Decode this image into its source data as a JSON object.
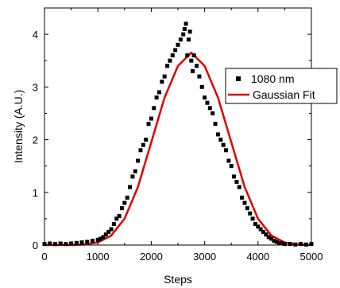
{
  "chart_data": {
    "type": "scatter",
    "title": "",
    "xlabel": "Steps",
    "ylabel": "Intensity (A.U.)",
    "xlim": [
      0,
      5000
    ],
    "ylim": [
      0,
      4.5
    ],
    "xticks": [
      0,
      1000,
      2000,
      3000,
      4000,
      5000
    ],
    "yticks": [
      0,
      1,
      2,
      3,
      4
    ],
    "legend_position": "right",
    "grid": false,
    "series": [
      {
        "name": "1080 nm",
        "kind": "scatter",
        "marker": "square",
        "color": "#000000",
        "x": [
          0,
          100,
          200,
          300,
          400,
          500,
          600,
          700,
          800,
          900,
          1000,
          1050,
          1100,
          1150,
          1200,
          1250,
          1300,
          1350,
          1400,
          1450,
          1500,
          1550,
          1600,
          1650,
          1700,
          1750,
          1800,
          1850,
          1900,
          1950,
          2000,
          2050,
          2100,
          2150,
          2200,
          2250,
          2300,
          2350,
          2400,
          2450,
          2500,
          2550,
          2600,
          2625,
          2650,
          2675,
          2700,
          2725,
          2750,
          2775,
          2800,
          2850,
          2900,
          2950,
          3000,
          3050,
          3100,
          3150,
          3200,
          3250,
          3300,
          3350,
          3400,
          3450,
          3500,
          3550,
          3600,
          3650,
          3700,
          3750,
          3800,
          3850,
          3900,
          3950,
          4000,
          4050,
          4100,
          4150,
          4200,
          4250,
          4300,
          4350,
          4400,
          4450,
          4500,
          4600,
          4700,
          4800,
          4900,
          5000
        ],
        "y": [
          0.02,
          0.03,
          0.02,
          0.03,
          0.02,
          0.03,
          0.04,
          0.05,
          0.06,
          0.08,
          0.1,
          0.12,
          0.15,
          0.2,
          0.25,
          0.3,
          0.4,
          0.5,
          0.55,
          0.7,
          0.8,
          0.9,
          1.1,
          1.3,
          1.4,
          1.6,
          1.8,
          1.9,
          2.0,
          2.3,
          2.4,
          2.6,
          2.8,
          2.9,
          3.1,
          3.2,
          3.4,
          3.5,
          3.6,
          3.7,
          3.8,
          3.9,
          4.0,
          4.1,
          4.2,
          3.6,
          3.9,
          4.05,
          3.5,
          3.3,
          3.6,
          3.4,
          3.2,
          3.0,
          2.8,
          2.7,
          2.6,
          2.5,
          2.3,
          2.1,
          2.0,
          1.9,
          1.8,
          1.6,
          1.5,
          1.3,
          1.2,
          1.1,
          0.9,
          0.8,
          0.7,
          0.6,
          0.5,
          0.4,
          0.35,
          0.3,
          0.25,
          0.2,
          0.15,
          0.12,
          0.08,
          0.06,
          0.04,
          0.03,
          0.02,
          0.02,
          0.01,
          0.02,
          0.01,
          0.02
        ]
      },
      {
        "name": "Gaussian Fit",
        "kind": "line",
        "color": "#e00000",
        "x": [
          0,
          250,
          500,
          750,
          1000,
          1250,
          1500,
          1750,
          2000,
          2250,
          2500,
          2750,
          3000,
          3250,
          3500,
          3750,
          4000,
          4250,
          4500,
          4750,
          5000
        ],
        "y": [
          0.0,
          0.0,
          0.0,
          0.01,
          0.05,
          0.18,
          0.5,
          1.1,
          1.95,
          2.8,
          3.4,
          3.65,
          3.4,
          2.8,
          1.95,
          1.1,
          0.5,
          0.18,
          0.05,
          0.01,
          0.0
        ]
      }
    ]
  }
}
